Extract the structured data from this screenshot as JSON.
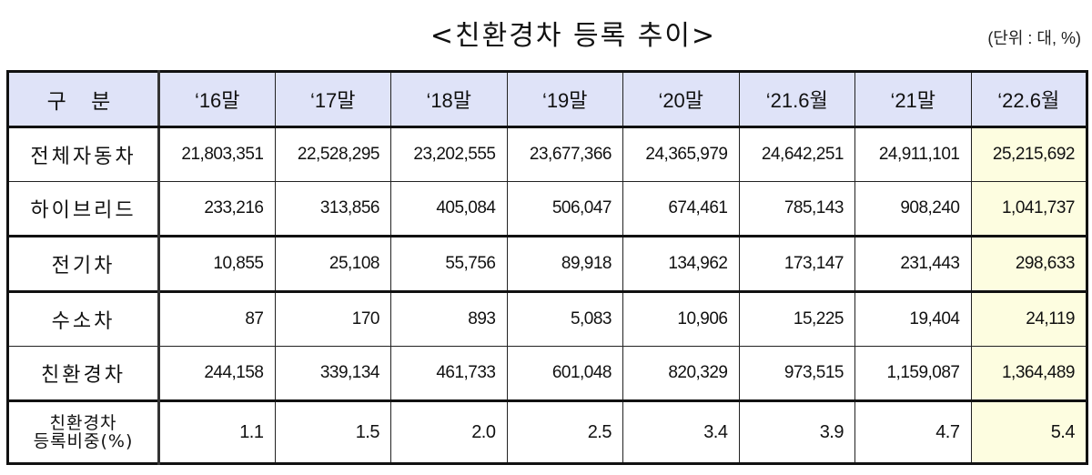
{
  "title": "<친환경차 등록 추이>",
  "unit": "(단위 : 대, %)",
  "table": {
    "header_label": "구 분",
    "columns": [
      "‘16말",
      "‘17말",
      "‘18말",
      "‘19말",
      "‘20말",
      "‘21.6월",
      "‘21말",
      "‘22.6월"
    ],
    "rows": [
      {
        "label": "전체자동차",
        "values": [
          "21,803,351",
          "22,528,295",
          "23,202,555",
          "23,677,366",
          "24,365,979",
          "24,642,251",
          "24,911,101",
          "25,215,692"
        ]
      },
      {
        "label": "하이브리드",
        "values": [
          "233,216",
          "313,856",
          "405,084",
          "506,047",
          "674,461",
          "785,143",
          "908,240",
          "1,041,737"
        ]
      },
      {
        "label": "전기차",
        "values": [
          "10,855",
          "25,108",
          "55,756",
          "89,918",
          "134,962",
          "173,147",
          "231,443",
          "298,633"
        ]
      },
      {
        "label": "수소차",
        "values": [
          "87",
          "170",
          "893",
          "5,083",
          "10,906",
          "15,225",
          "19,404",
          "24,119"
        ]
      },
      {
        "label": "친환경차",
        "values": [
          "244,158",
          "339,134",
          "461,733",
          "601,048",
          "820,329",
          "973,515",
          "1,159,087",
          "1,364,489"
        ]
      },
      {
        "label_line1": "친환경차",
        "label_line2": "등록비중(%)",
        "values": [
          "1.1",
          "1.5",
          "2.0",
          "2.5",
          "3.4",
          "3.9",
          "4.7",
          "5.4"
        ]
      }
    ]
  },
  "colors": {
    "header_bg": "#dfe3f8",
    "highlight_bg": "#fdfde0",
    "border": "#111111"
  },
  "chart_data": {
    "type": "table",
    "title": "<친환경차 등록 추이>",
    "unit": "(단위 : 대, %)",
    "categories": [
      "‘16말",
      "‘17말",
      "‘18말",
      "‘19말",
      "‘20말",
      "‘21.6월",
      "‘21말",
      "‘22.6월"
    ],
    "series": [
      {
        "name": "전체자동차",
        "values": [
          21803351,
          22528295,
          23202555,
          23677366,
          24365979,
          24642251,
          24911101,
          25215692
        ]
      },
      {
        "name": "하이브리드",
        "values": [
          233216,
          313856,
          405084,
          506047,
          674461,
          785143,
          908240,
          1041737
        ]
      },
      {
        "name": "전기차",
        "values": [
          10855,
          25108,
          55756,
          89918,
          134962,
          173147,
          231443,
          298633
        ]
      },
      {
        "name": "수소차",
        "values": [
          87,
          170,
          893,
          5083,
          10906,
          15225,
          19404,
          24119
        ]
      },
      {
        "name": "친환경차",
        "values": [
          244158,
          339134,
          461733,
          601048,
          820329,
          973515,
          1159087,
          1364489
        ]
      },
      {
        "name": "친환경차 등록비중(%)",
        "values": [
          1.1,
          1.5,
          2.0,
          2.5,
          3.4,
          3.9,
          4.7,
          5.4
        ]
      }
    ]
  }
}
